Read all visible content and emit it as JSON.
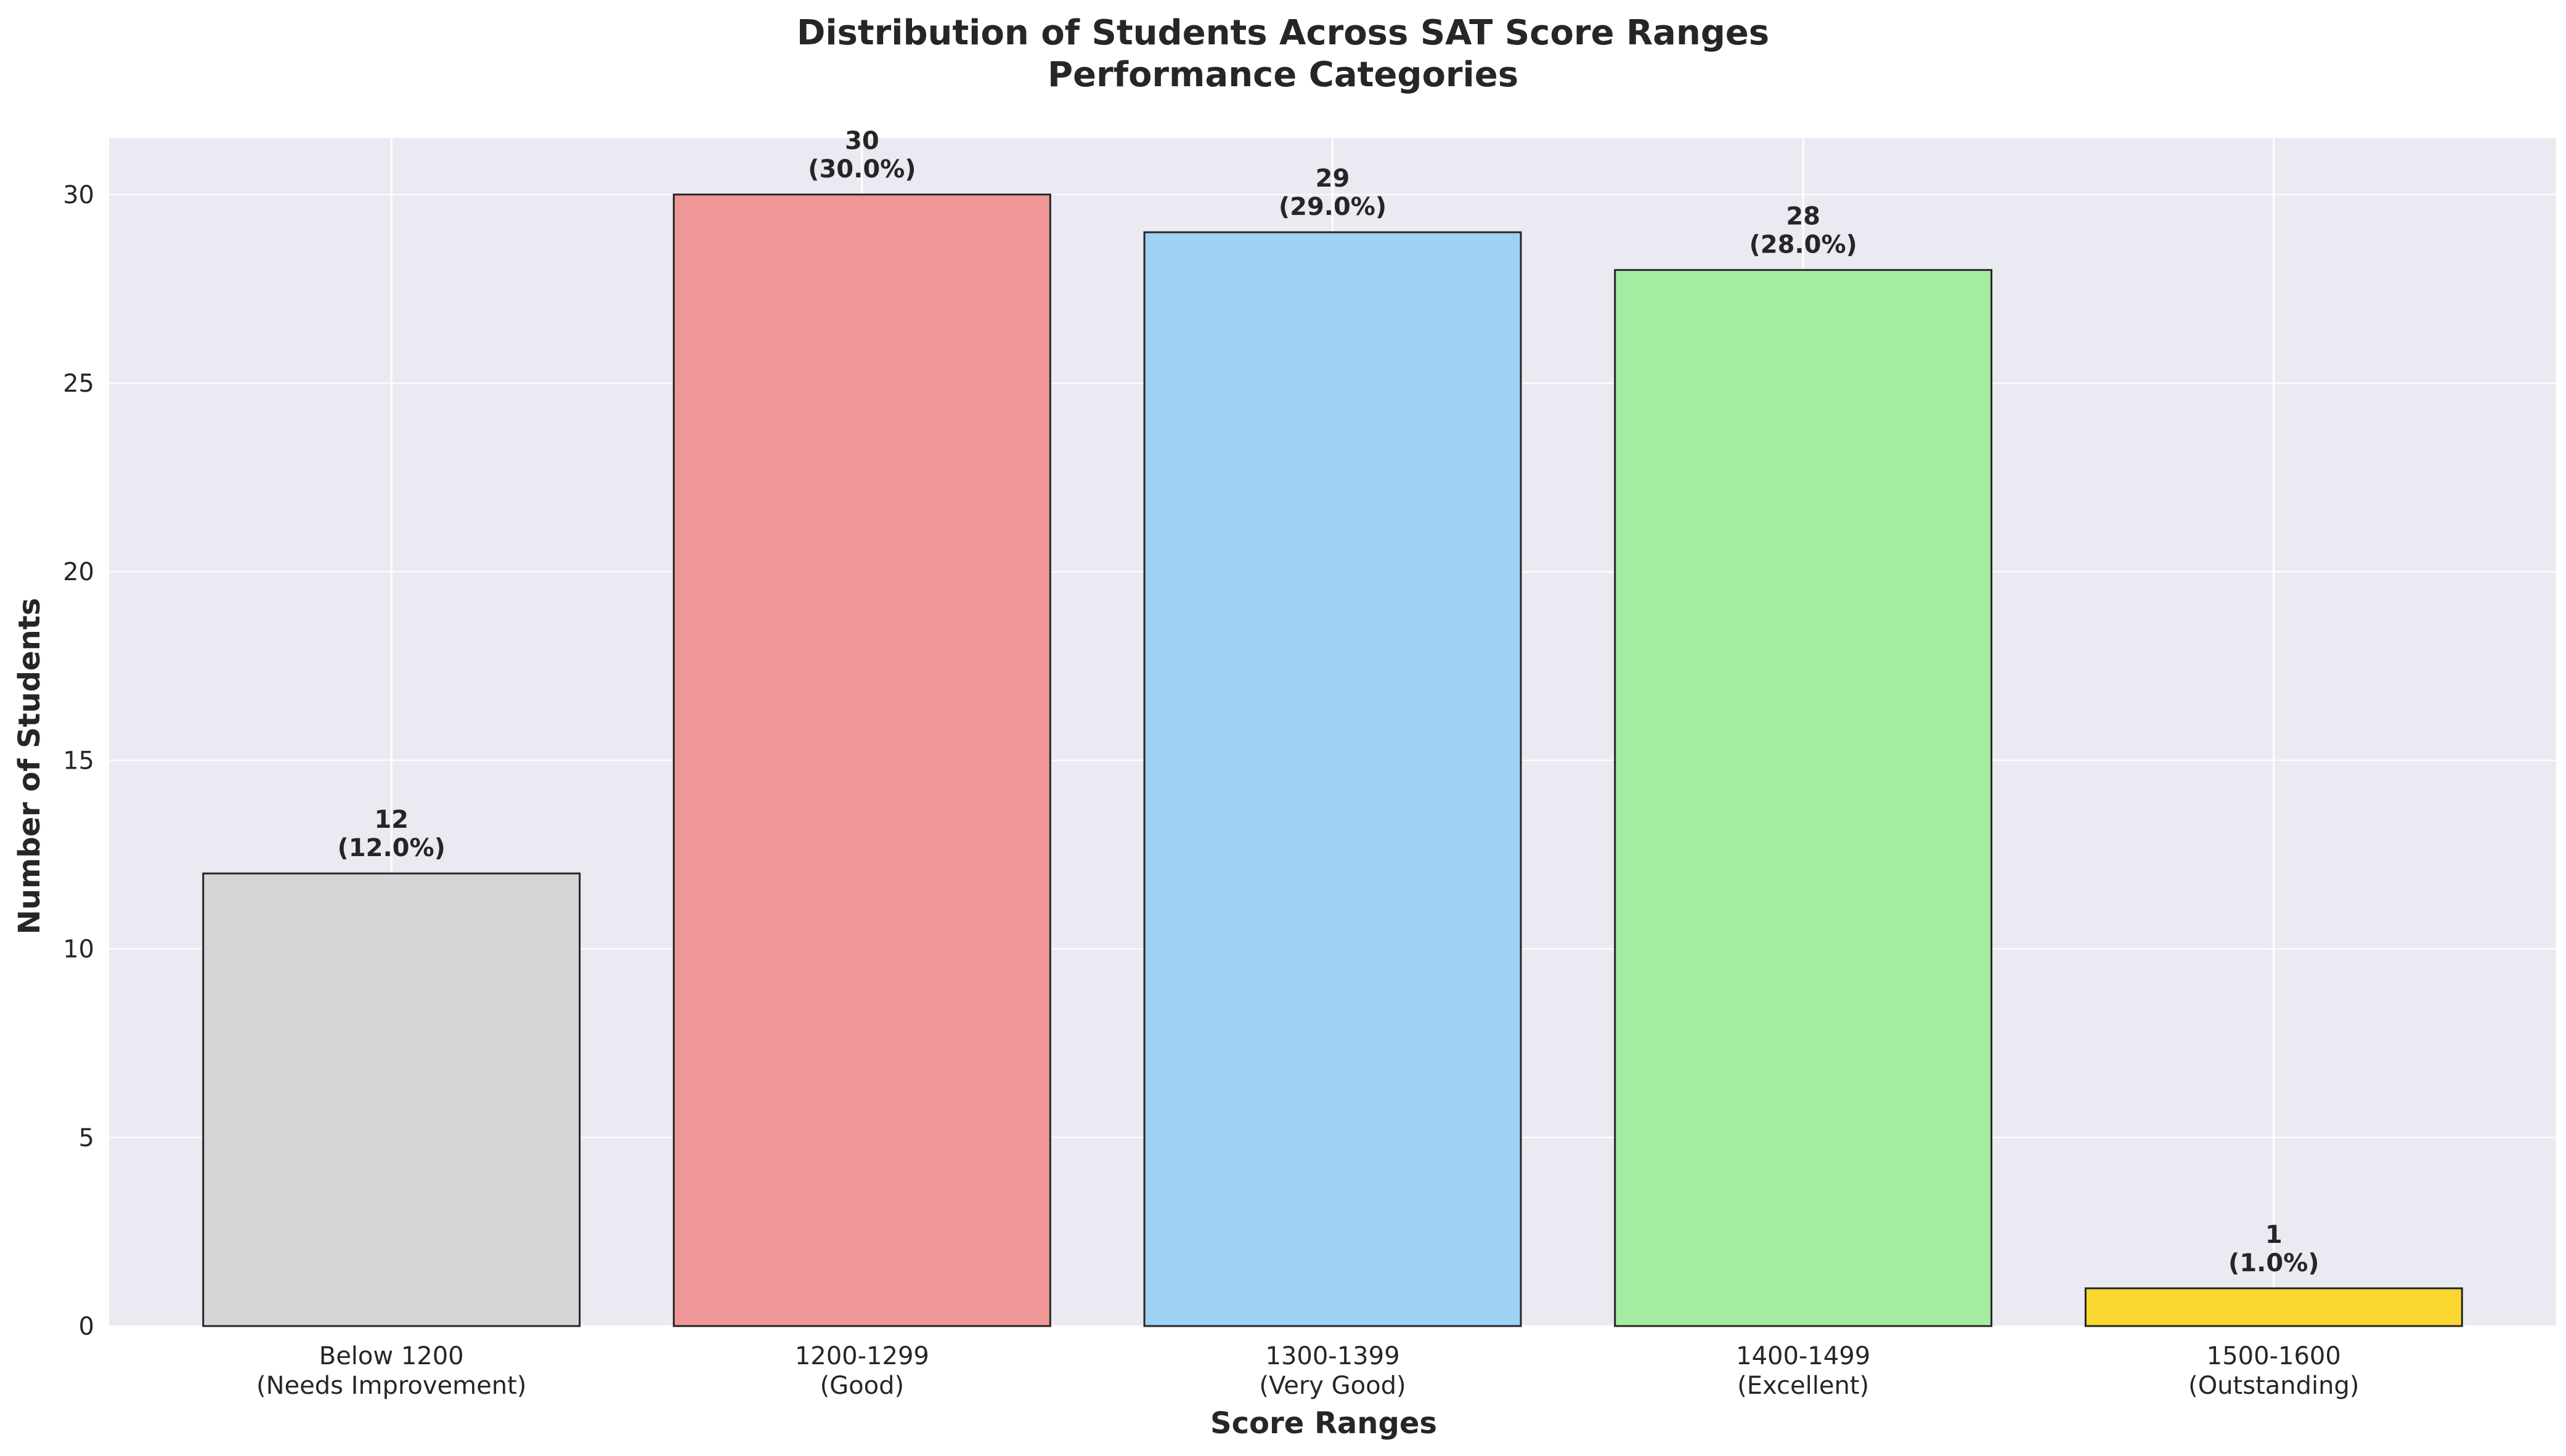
{
  "chart_data": {
    "type": "bar",
    "title": "Distribution of Students Across SAT Score Ranges",
    "subtitle": "Performance Categories",
    "xlabel": "Score Ranges",
    "ylabel": "Number of Students",
    "ylim": [
      0,
      31.5
    ],
    "yticks": [
      "0",
      "5",
      "10",
      "15",
      "20",
      "25",
      "30"
    ],
    "grid": true,
    "categories": [
      [
        "Below 1200",
        "(Needs Improvement)"
      ],
      [
        "1200-1299",
        "(Good)"
      ],
      [
        "1300-1399",
        "(Very Good)"
      ],
      [
        "1400-1499",
        "(Excellent)"
      ],
      [
        "1500-1600",
        "(Outstanding)"
      ]
    ],
    "values": [
      12,
      30,
      29,
      28,
      1
    ],
    "value_labels": [
      "12",
      "30",
      "29",
      "28",
      "1"
    ],
    "percent_labels": [
      "(12.0%)",
      "(30.0%)",
      "(29.0%)",
      "(28.0%)",
      "(1.0%)"
    ],
    "colors": [
      "#d6d6d8",
      "#ef9797",
      "#9dd2f5",
      "#a3eca2",
      "#fbd831"
    ],
    "background_color": "#eaeaf2",
    "grid_color": "#ffffff",
    "edge_color": "#262626"
  }
}
